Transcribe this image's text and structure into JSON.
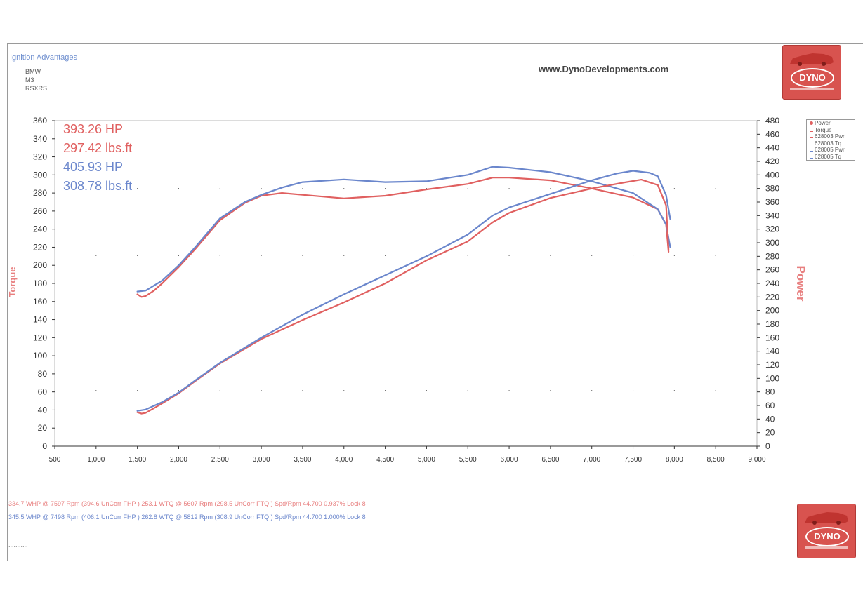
{
  "header": {
    "title": "Ignition Advantages",
    "lines": [
      "BMW",
      "M3",
      "RSXRS"
    ],
    "website": "www.DynoDevelopments.com"
  },
  "logos": {
    "text": "DYNO"
  },
  "legend": {
    "items": [
      {
        "label": "Power",
        "color": "#e06060"
      },
      {
        "label": "Torque",
        "color": "#e06060"
      },
      {
        "label": "628003 Pwr",
        "color": "#e06060"
      },
      {
        "label": "628003 Tq",
        "color": "#e06060"
      },
      {
        "label": "628005 Pwr",
        "color": "#6a86cc"
      },
      {
        "label": "628005 Tq",
        "color": "#6a86cc"
      }
    ]
  },
  "footer": {
    "line1": "334.7 WHP @ 7597 Rpm (394.6 UnCorr FHP )  253.1 WTQ @ 5607 Rpm (298.5 UnCorr FTQ ) Spd/Rpm 44.700 0.937% Lock 8",
    "line2": "345.5 WHP @ 7498 Rpm (406.1 UnCorr FHP )  262.8 WTQ @ 5812 Rpm (308.9 UnCorr FTQ ) Spd/Rpm 44.700 1.000% Lock 8",
    "dots": "..........."
  },
  "chart_data": {
    "type": "line",
    "xlabel": "",
    "ylabel_left": "Torque",
    "ylabel_right": "Power",
    "xlim": [
      500,
      9000
    ],
    "ylim_left": [
      0,
      360
    ],
    "ylim_right": [
      0,
      480
    ],
    "x_ticks": [
      500,
      1000,
      1500,
      2000,
      2500,
      3000,
      3500,
      4000,
      4500,
      5000,
      5500,
      6000,
      6500,
      7000,
      7500,
      8000,
      8500,
      9000
    ],
    "x_tick_labels": [
      "500",
      "1,000",
      "1,500",
      "2,000",
      "2,500",
      "3,000",
      "3,500",
      "4,000",
      "4,500",
      "5,000",
      "5,500",
      "6,000",
      "6,500",
      "7,000",
      "7,500",
      "8,000",
      "8,500",
      "9,000"
    ],
    "y_left_ticks": [
      0,
      20,
      40,
      60,
      80,
      100,
      120,
      140,
      160,
      180,
      200,
      220,
      240,
      260,
      280,
      300,
      320,
      340,
      360
    ],
    "y_right_ticks": [
      0,
      20,
      40,
      60,
      80,
      100,
      120,
      140,
      160,
      180,
      200,
      220,
      240,
      260,
      280,
      300,
      320,
      340,
      360,
      380,
      400,
      420,
      440,
      460,
      480
    ],
    "peak_labels": [
      {
        "text": "393.26 HP",
        "color": "#e06060"
      },
      {
        "text": "297.42 lbs.ft",
        "color": "#e06060"
      },
      {
        "text": "405.93 HP",
        "color": "#6a86cc"
      },
      {
        "text": "308.78 lbs.ft",
        "color": "#6a86cc"
      }
    ],
    "series": [
      {
        "color": "#e06060",
        "axis": "left",
        "x": [
          1500,
          1550,
          1600,
          1700,
          1800,
          2000,
          2200,
          2500,
          2800,
          3000,
          3250,
          3500,
          4000,
          4500,
          5000,
          5500,
          5800,
          6000,
          6500,
          7000,
          7500,
          7800,
          7900,
          7930
        ],
        "values": [
          168,
          165,
          166,
          172,
          180,
          198,
          218,
          250,
          269,
          277,
          280,
          278,
          274,
          277,
          284,
          290,
          297,
          297,
          294,
          285,
          275,
          262,
          245,
          215
        ]
      },
      {
        "color": "#6a86cc",
        "axis": "left",
        "x": [
          1500,
          1600,
          1800,
          2000,
          2200,
          2500,
          2800,
          3000,
          3250,
          3500,
          4000,
          4500,
          5000,
          5500,
          5800,
          6000,
          6500,
          7000,
          7500,
          7800,
          7900,
          7950
        ],
        "values": [
          171,
          172,
          183,
          200,
          220,
          252,
          270,
          278,
          286,
          292,
          295,
          292,
          293,
          300,
          309,
          308,
          303,
          293,
          280,
          262,
          245,
          220
        ]
      },
      {
        "color": "#e06060",
        "axis": "right",
        "x": [
          1500,
          1550,
          1600,
          1700,
          1800,
          2000,
          2200,
          2500,
          3000,
          3500,
          4000,
          4500,
          5000,
          5500,
          5800,
          6000,
          6500,
          7000,
          7400,
          7600,
          7800,
          7900,
          7930
        ],
        "values": [
          50,
          48,
          49,
          56,
          63,
          78,
          96,
          122,
          158,
          186,
          212,
          240,
          274,
          302,
          330,
          344,
          366,
          380,
          389,
          393,
          385,
          355,
          290
        ]
      },
      {
        "color": "#6a86cc",
        "axis": "right",
        "x": [
          1500,
          1600,
          1800,
          2000,
          2200,
          2500,
          3000,
          3500,
          4000,
          4500,
          5000,
          5500,
          5800,
          6000,
          6500,
          7000,
          7300,
          7500,
          7700,
          7800,
          7900,
          7950
        ],
        "values": [
          52,
          54,
          65,
          79,
          97,
          123,
          160,
          194,
          224,
          252,
          280,
          312,
          340,
          352,
          372,
          392,
          402,
          406,
          403,
          398,
          370,
          335
        ]
      }
    ]
  }
}
